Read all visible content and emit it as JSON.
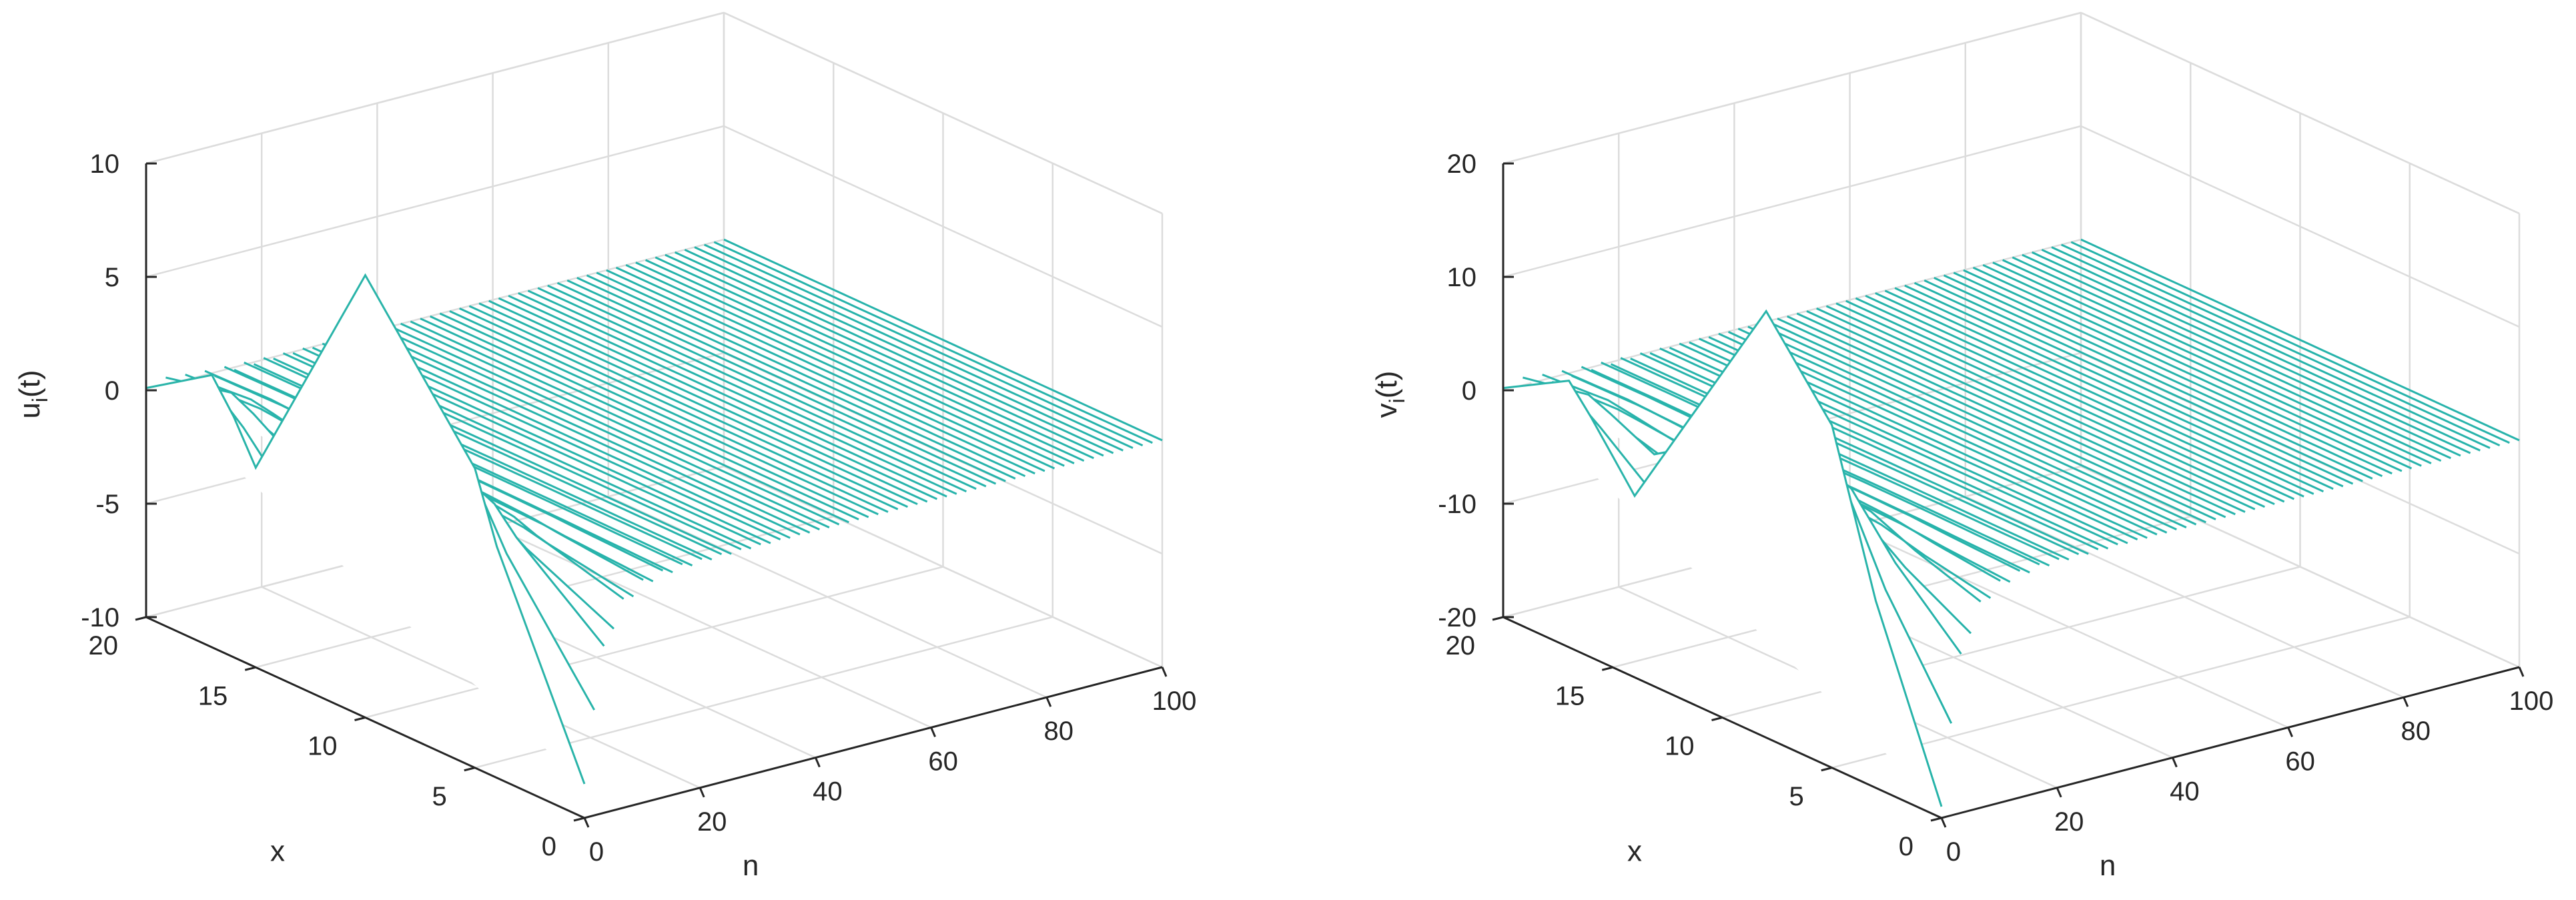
{
  "chart_data": [
    {
      "type": "line",
      "subtype": "3d-waterfall",
      "ylabel_text": "u",
      "ylabel_sub": "i",
      "ylabel_tail": "(t)",
      "xlabel": "n",
      "depth_label": "x",
      "n_ticks": [
        "0",
        "20",
        "40",
        "60",
        "80",
        "100"
      ],
      "x_ticks": [
        "0",
        "5",
        "10",
        "15",
        "20"
      ],
      "z_ticks": [
        "-10",
        "-5",
        "0",
        "5",
        "10"
      ],
      "n_range": [
        0,
        100
      ],
      "x_range": [
        0,
        20
      ],
      "z_range": [
        -10,
        10
      ],
      "grid": true,
      "colormap": "parula",
      "decay_to": 0,
      "initial_profile": [
        {
          "x": 0,
          "value": -8.5
        },
        {
          "x": 4,
          "value": 0.2
        },
        {
          "x": 5,
          "value": 3.2
        },
        {
          "x": 10,
          "value": 9.5
        },
        {
          "x": 15,
          "value": -1.2
        },
        {
          "x": 16,
          "value": 0.6
        },
        {
          "x": 17,
          "value": 2.0
        },
        {
          "x": 20,
          "value": 0.1
        }
      ]
    },
    {
      "type": "line",
      "subtype": "3d-waterfall",
      "ylabel_text": "v",
      "ylabel_sub": "i",
      "ylabel_tail": "(t)",
      "xlabel": "n",
      "depth_label": "x",
      "n_ticks": [
        "0",
        "20",
        "40",
        "60",
        "80",
        "100"
      ],
      "x_ticks": [
        "0",
        "5",
        "10",
        "15",
        "20"
      ],
      "z_ticks": [
        "-20",
        "-10",
        "0",
        "10",
        "20"
      ],
      "n_range": [
        0,
        100
      ],
      "x_range": [
        0,
        20
      ],
      "z_range": [
        -20,
        20
      ],
      "grid": true,
      "colormap": "parula",
      "decay_to": 0,
      "initial_profile": [
        {
          "x": 0,
          "value": -19
        },
        {
          "x": 3,
          "value": -3.5
        },
        {
          "x": 5,
          "value": 10.2
        },
        {
          "x": 8,
          "value": 17.6
        },
        {
          "x": 14,
          "value": -4.0
        },
        {
          "x": 16,
          "value": 1.2
        },
        {
          "x": 17,
          "value": 3.5
        },
        {
          "x": 20,
          "value": 0.2
        }
      ]
    }
  ]
}
